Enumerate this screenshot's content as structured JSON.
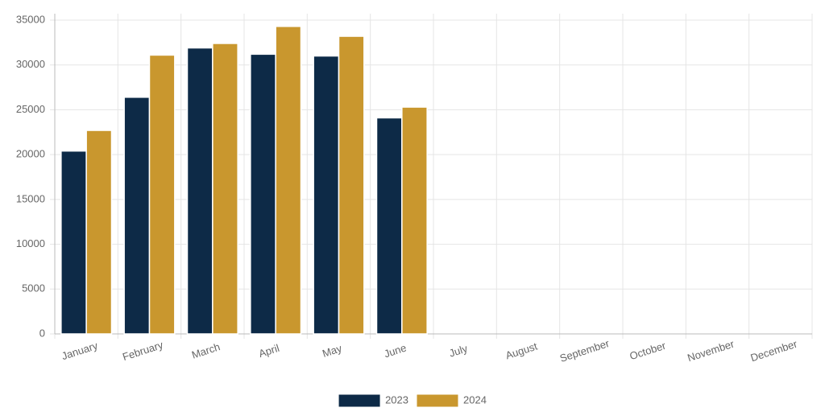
{
  "chart_data": {
    "type": "bar",
    "categories": [
      "January",
      "February",
      "March",
      "April",
      "May",
      "June",
      "July",
      "August",
      "September",
      "October",
      "November",
      "December"
    ],
    "series": [
      {
        "name": "2023",
        "color": "#0d2a47",
        "values": [
          20400,
          26400,
          31900,
          31200,
          31000,
          24100,
          null,
          null,
          null,
          null,
          null,
          null
        ]
      },
      {
        "name": "2024",
        "color": "#c9972e",
        "values": [
          22700,
          31100,
          32400,
          34300,
          33200,
          25300,
          null,
          null,
          null,
          null,
          null,
          null
        ]
      }
    ],
    "ylim": [
      0,
      35000
    ],
    "yticks": [
      0,
      5000,
      10000,
      15000,
      20000,
      25000,
      30000,
      35000
    ],
    "grid": true,
    "legend": "bottom"
  }
}
